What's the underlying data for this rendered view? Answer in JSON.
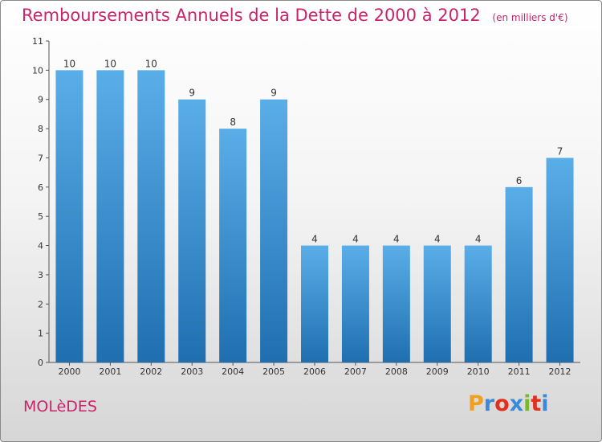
{
  "header": {
    "title": "Remboursements Annuels de la Dette de 2000 à 2012",
    "subtitle": "(en milliers d'€)"
  },
  "footer": {
    "commune": "MOLèDES",
    "logo": [
      "P",
      "r",
      "o",
      "x",
      "i",
      "t",
      "i"
    ]
  },
  "colors": {
    "title": "#c8246c",
    "bar_top": "#5aaee8",
    "bar_bottom": "#1f6fb0",
    "logo": [
      "#f0a020",
      "#3a8ad8",
      "#e0301e",
      "#3a8ad8",
      "#7cb82f",
      "#e0301e",
      "#3a8ad8"
    ]
  },
  "chart_data": {
    "type": "bar",
    "categories": [
      "2000",
      "2001",
      "2002",
      "2003",
      "2004",
      "2005",
      "2006",
      "2007",
      "2008",
      "2009",
      "2010",
      "2011",
      "2012"
    ],
    "values": [
      10,
      10,
      10,
      9,
      8,
      9,
      4,
      4,
      4,
      4,
      4,
      6,
      7
    ],
    "data_labels": [
      "10",
      "10",
      "10",
      "9",
      "8",
      "9",
      "4",
      "4",
      "4",
      "4",
      "4",
      "6",
      "7"
    ],
    "y_ticks": [
      "0",
      "1",
      "2",
      "3",
      "4",
      "5",
      "6",
      "7",
      "8",
      "9",
      "10",
      "11"
    ],
    "ylim": [
      0,
      11
    ],
    "xlabel": "",
    "ylabel": "",
    "grid": false
  }
}
